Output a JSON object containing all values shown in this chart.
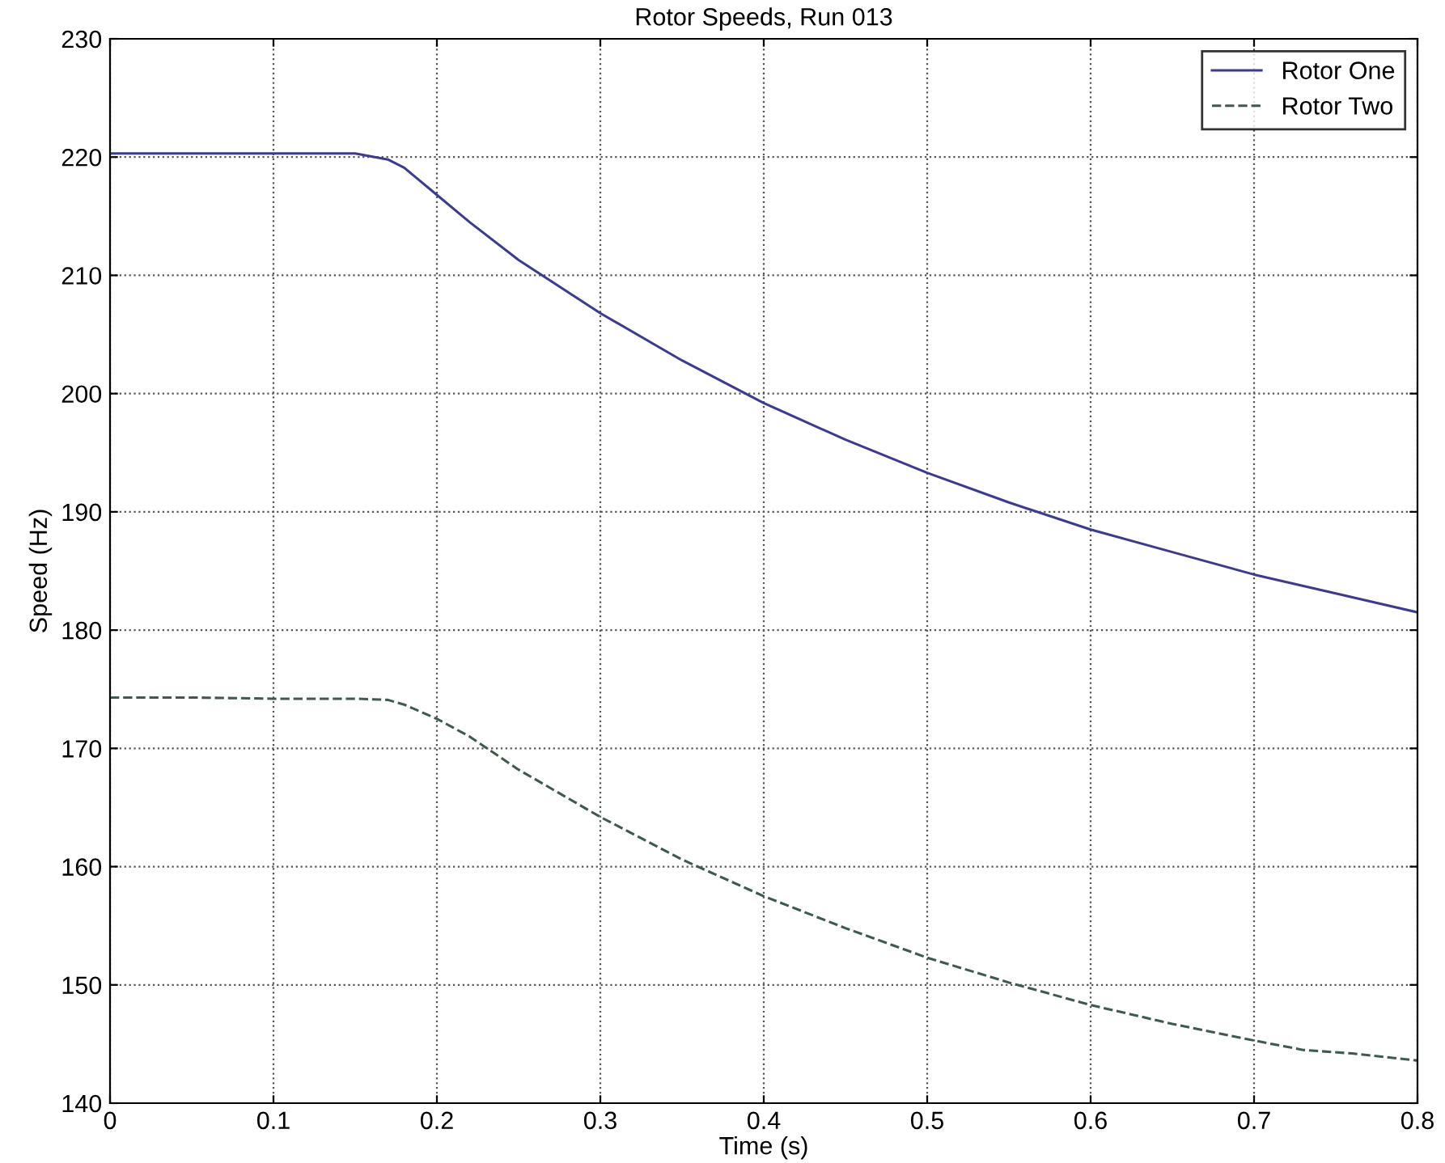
{
  "chart_data": {
    "type": "line",
    "title": "Rotor Speeds, Run 013",
    "xlabel": "Time (s)",
    "ylabel": "Speed (Hz)",
    "xlim": [
      0,
      0.8
    ],
    "xticks": [
      0,
      0.1,
      0.2,
      0.3,
      0.4,
      0.5,
      0.6,
      0.7,
      0.8
    ],
    "ylim": [
      140,
      230
    ],
    "yticks": [
      140,
      150,
      160,
      170,
      180,
      190,
      200,
      210,
      220,
      230
    ],
    "grid": true,
    "legend": "top right",
    "series": [
      {
        "name": "Rotor One",
        "color": "#3b3b8f",
        "line_style": "solid",
        "x": [
          0,
          0.05,
          0.1,
          0.15,
          0.17,
          0.18,
          0.2,
          0.22,
          0.25,
          0.3,
          0.35,
          0.4,
          0.45,
          0.5,
          0.55,
          0.6,
          0.65,
          0.7,
          0.75,
          0.8
        ],
        "values": [
          220.3,
          220.3,
          220.3,
          220.3,
          219.8,
          219.1,
          216.8,
          214.5,
          211.3,
          206.8,
          202.8,
          199.2,
          196.1,
          193.3,
          190.8,
          188.5,
          186.6,
          184.7,
          183.1,
          181.5
        ]
      },
      {
        "name": "Rotor Two",
        "color": "#3d5a4a",
        "line_style": "dashed",
        "x": [
          0,
          0.05,
          0.1,
          0.15,
          0.17,
          0.18,
          0.2,
          0.22,
          0.25,
          0.3,
          0.35,
          0.4,
          0.45,
          0.5,
          0.55,
          0.6,
          0.65,
          0.7,
          0.73,
          0.76,
          0.8
        ],
        "values": [
          174.3,
          174.3,
          174.2,
          174.2,
          174.1,
          173.7,
          172.5,
          171.0,
          168.2,
          164.2,
          160.6,
          157.5,
          154.8,
          152.3,
          150.2,
          148.3,
          146.7,
          145.3,
          144.5,
          144.2,
          143.6
        ]
      }
    ]
  }
}
